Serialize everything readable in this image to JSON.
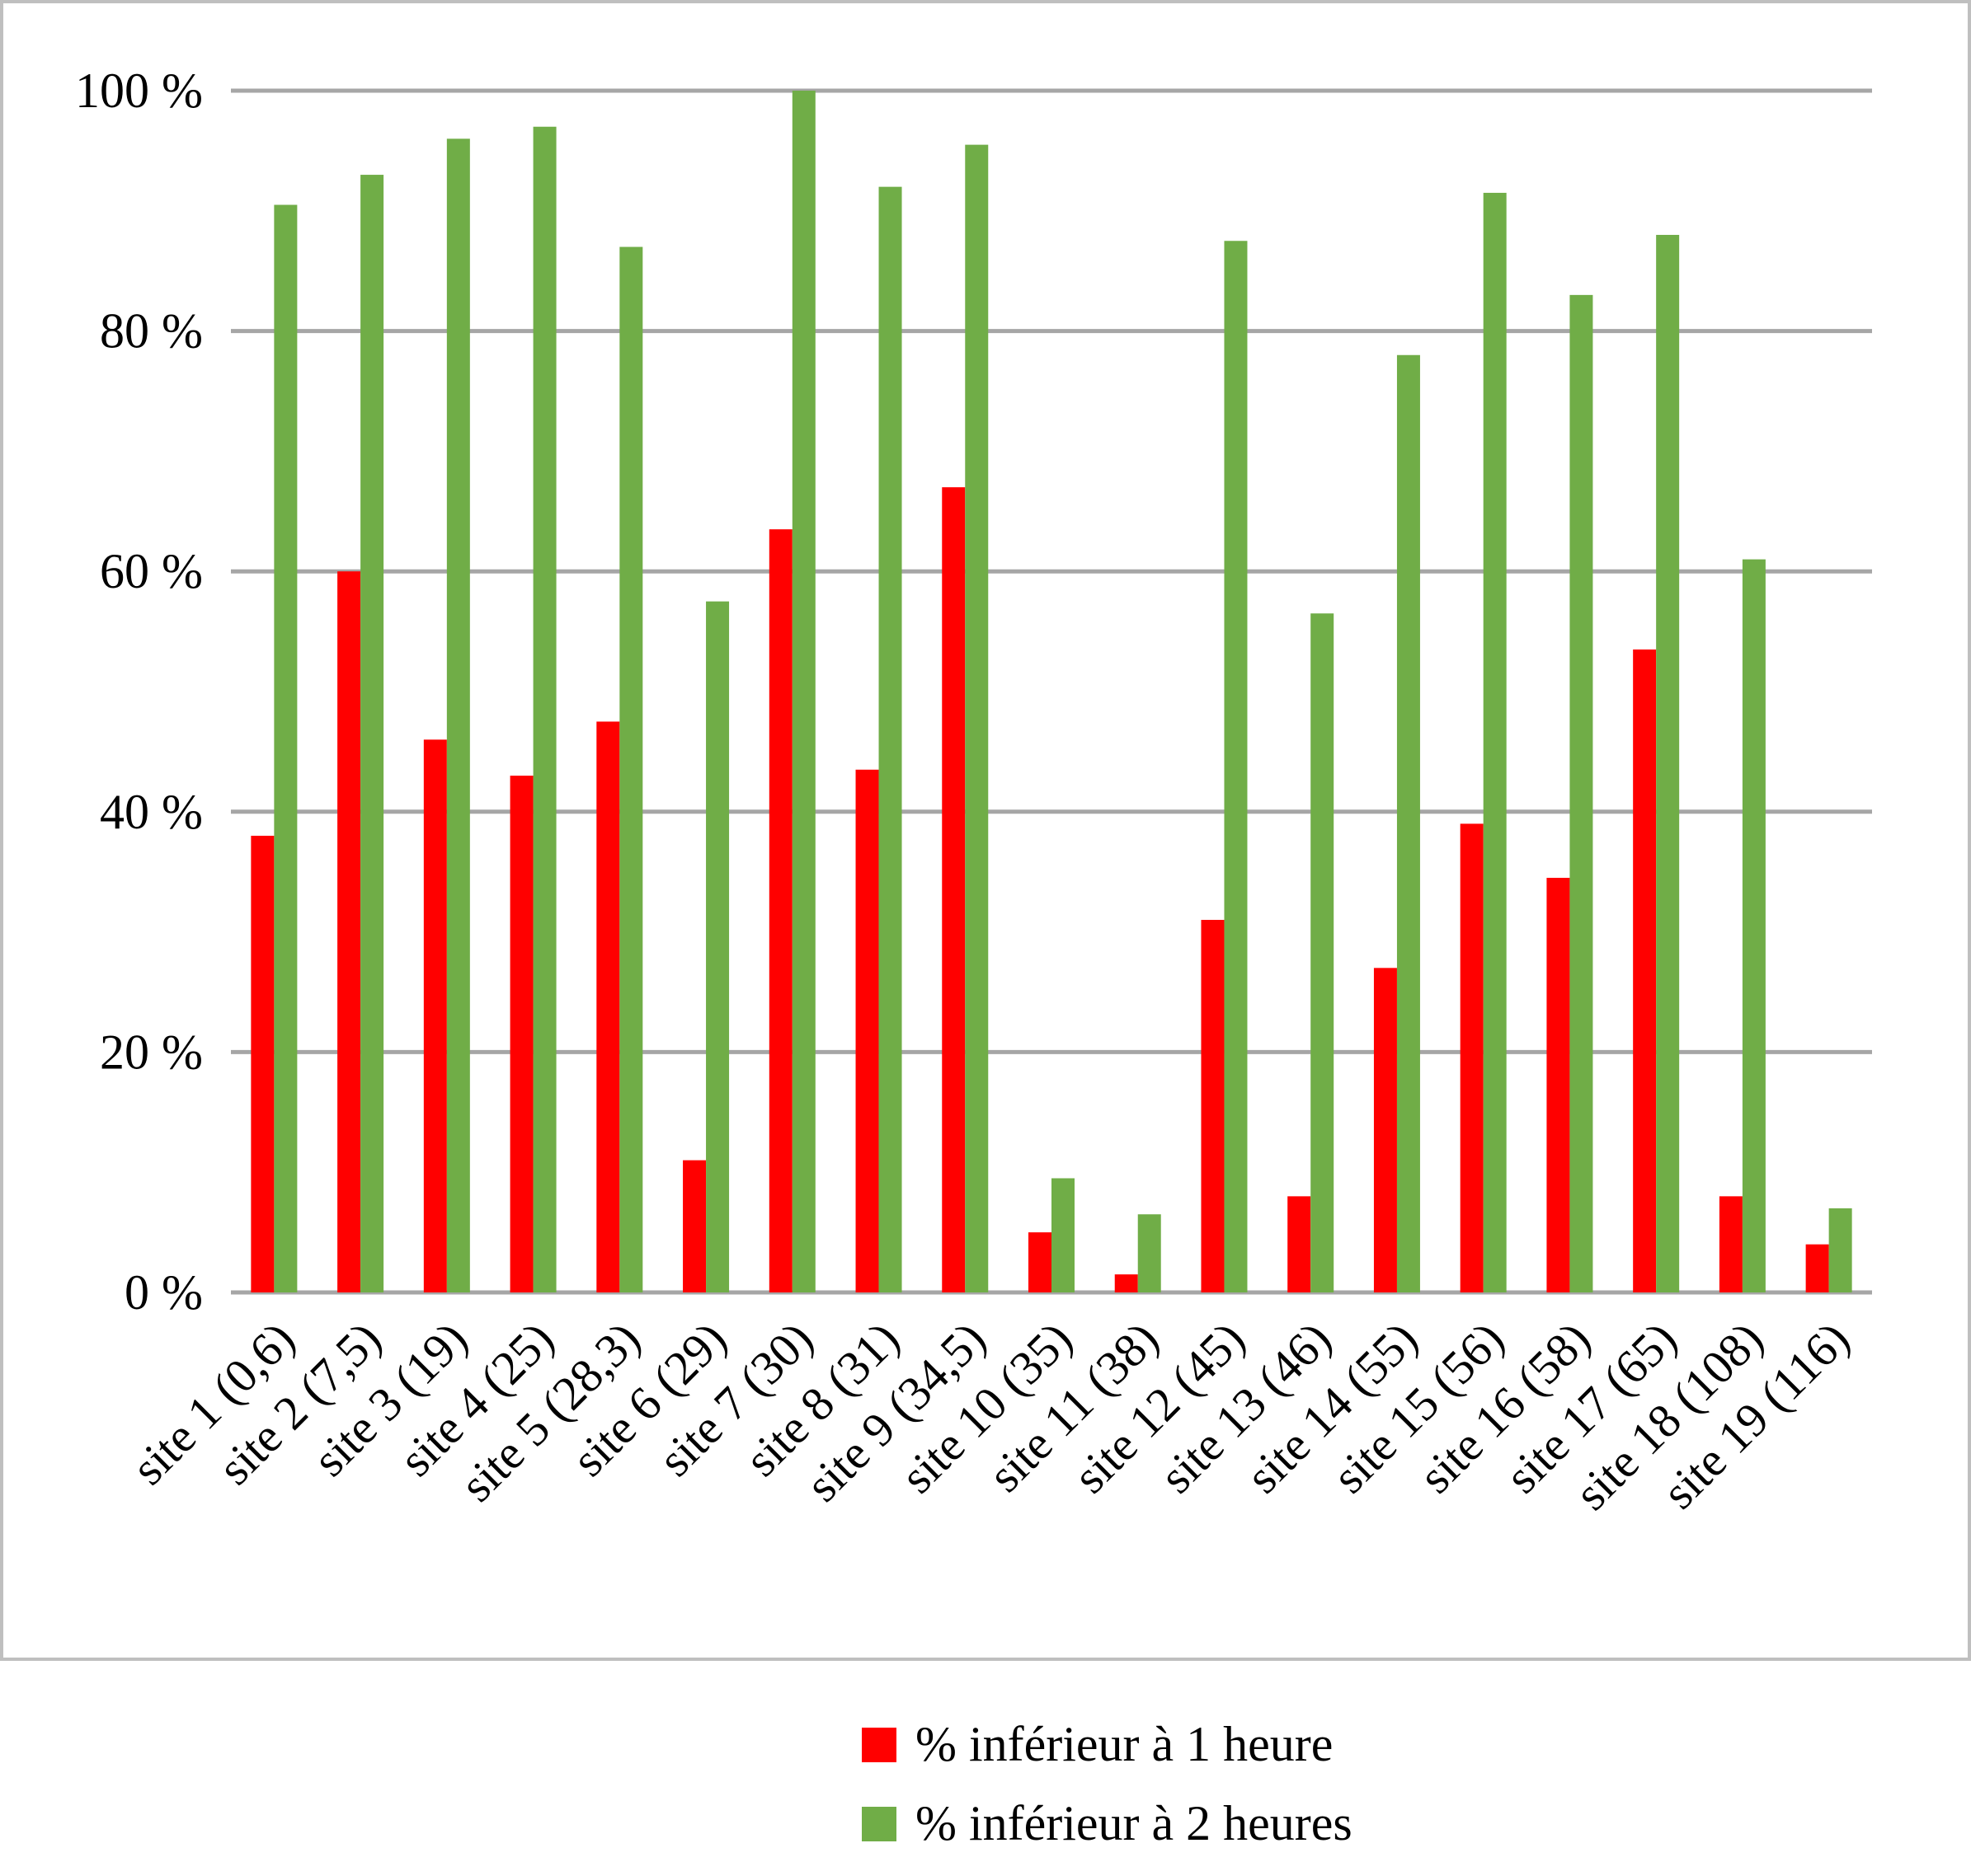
{
  "chart_data": {
    "type": "bar",
    "categories": [
      "site 1 (0,6)",
      "site 2 (7,5)",
      "site 3 (19)",
      "site 4 (25)",
      "site 5 (28,3)",
      "site 6 (29)",
      "site 7 (30)",
      "site 8 (31)",
      "site 9 (34,5)",
      "site 10 (35)",
      "site 11 (38)",
      "site 12 (45)",
      "site 13 (46)",
      "site 14 (55)",
      "site 15 (56)",
      "site 16 (58)",
      "site 17 (65)",
      "site 18 (108)",
      "site 19 (116)"
    ],
    "series": [
      {
        "name": "% inférieur à 1 heure",
        "color": "#ff0000",
        "values": [
          38,
          60,
          46,
          43,
          47.5,
          11,
          63.5,
          43.5,
          67,
          5,
          1.5,
          31,
          8,
          27,
          39,
          34.5,
          53.5,
          8,
          4
        ]
      },
      {
        "name": "% inférieur à 2 heures",
        "color": "#70ad47",
        "values": [
          90.5,
          93,
          96,
          97,
          87,
          57.5,
          100,
          92,
          95.5,
          9.5,
          6.5,
          87.5,
          56.5,
          78,
          91.5,
          83,
          88,
          61,
          7
        ]
      }
    ],
    "ylim": [
      0,
      100
    ],
    "yticks": [
      "0 %",
      "20 %",
      "40 %",
      "60 %",
      "80 %",
      "100 %"
    ],
    "ytick_values": [
      0,
      20,
      40,
      60,
      80,
      100
    ],
    "grid": true,
    "gridline_color": "#a6a6a6",
    "legend_position": "bottom"
  }
}
